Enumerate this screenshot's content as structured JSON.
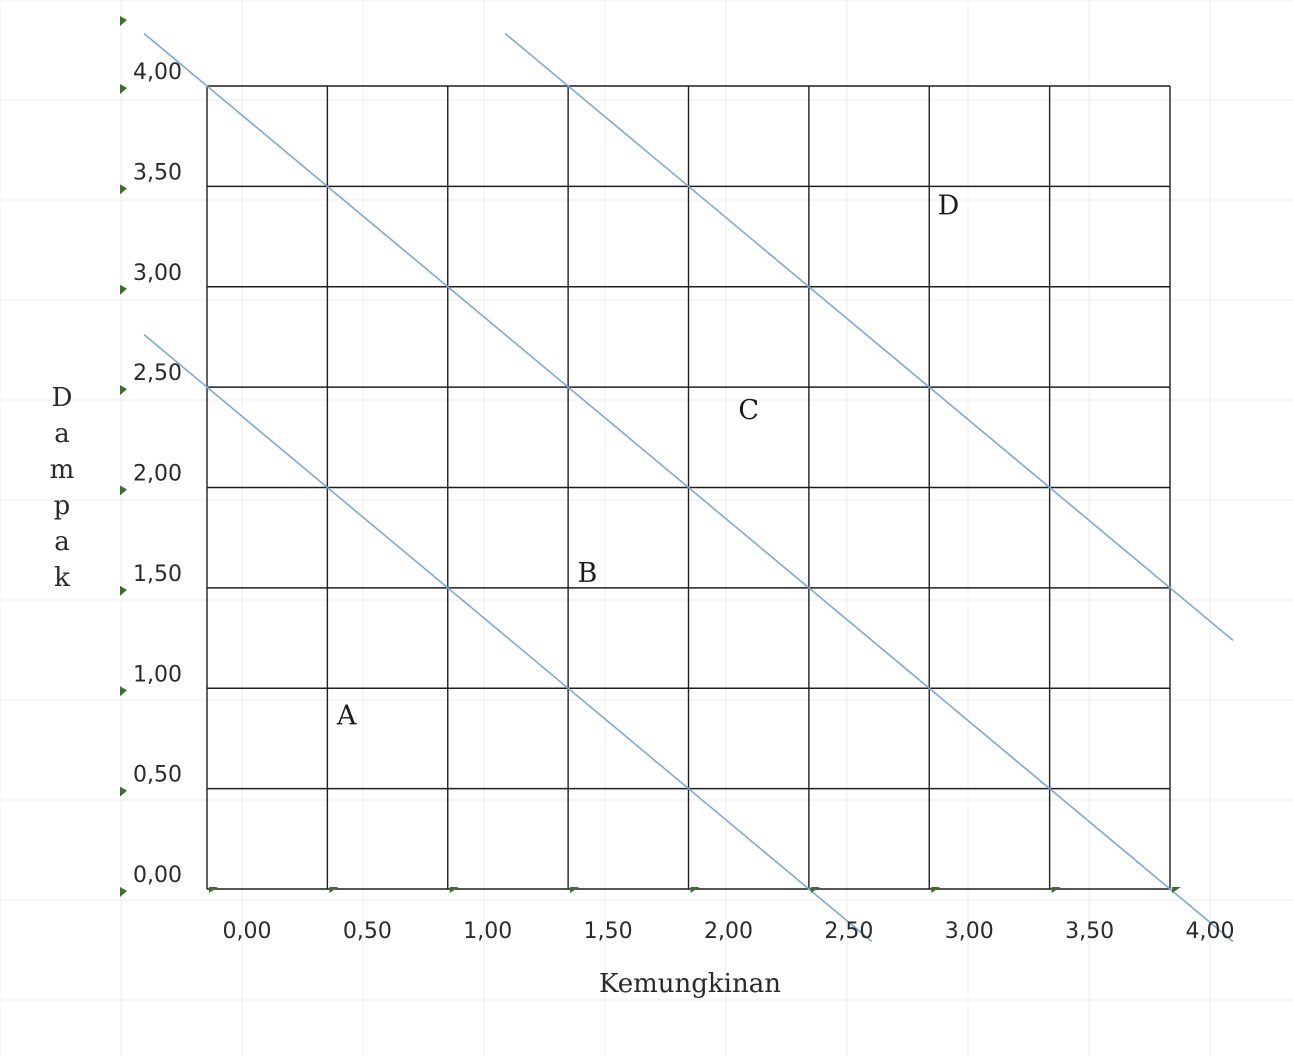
{
  "chart_data": {
    "type": "line",
    "title": "",
    "xlabel": "Kemungkinan",
    "ylabel": "Dampak",
    "xlim": [
      0,
      4
    ],
    "ylim": [
      0,
      4
    ],
    "x_ticks": [
      "0,00",
      "0,50",
      "1,00",
      "1,50",
      "2,00",
      "2,50",
      "3,00",
      "3,50",
      "4,00"
    ],
    "y_ticks": [
      "0,00",
      "0,50",
      "1,00",
      "1,50",
      "2,00",
      "2,50",
      "3,00",
      "3,50",
      "4,00"
    ],
    "grid": true,
    "boundaries": [
      {
        "points": [
          [
            0,
            2.5
          ],
          [
            2.5,
            0
          ]
        ]
      },
      {
        "points": [
          [
            0,
            4.0
          ],
          [
            4.0,
            0
          ]
        ]
      },
      {
        "points": [
          [
            1.5,
            4.0
          ],
          [
            4.0,
            1.5
          ]
        ]
      }
    ],
    "zones": [
      {
        "label": "A",
        "x": 0.58,
        "y": 0.87
      },
      {
        "label": "B",
        "x": 1.58,
        "y": 1.58
      },
      {
        "label": "C",
        "x": 2.25,
        "y": 2.39
      },
      {
        "label": "D",
        "x": 3.08,
        "y": 3.41
      }
    ],
    "colors": {
      "grid": "#1f1f1f",
      "boundary": "#7fa8d4",
      "tick_marker": "#3c6e2c",
      "faint_grid": "#eeeeee"
    }
  }
}
